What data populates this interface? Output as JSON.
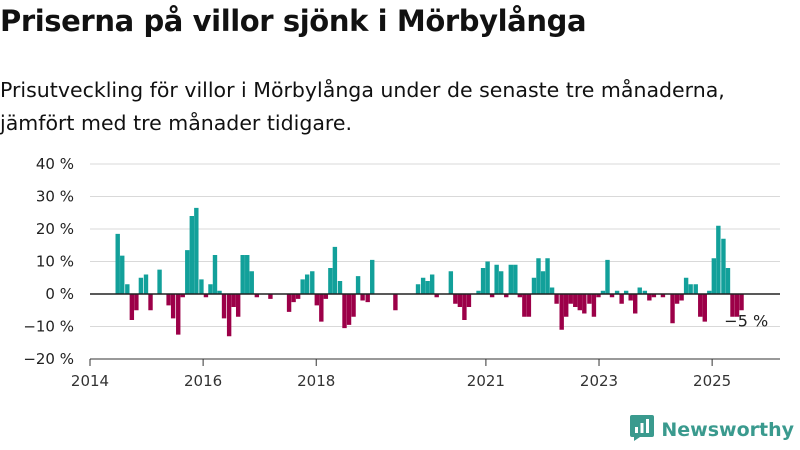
{
  "header": {
    "title": "Priserna på villor sjönk i Mörbylånga",
    "subtitle": "Prisutveckling för villor i Mörbylånga under de senaste tre månaderna, jämfört med tre månader tidigare."
  },
  "brand": {
    "name": "Newsworthy",
    "icon": "newsworthy-logo-icon",
    "color": "#3a9a8e"
  },
  "chart_data": {
    "type": "bar",
    "x_unit": "year (decimal)",
    "ylim": [
      -20,
      40
    ],
    "yticks": [
      -20,
      -10,
      0,
      10,
      20,
      30,
      40
    ],
    "ytick_labels": [
      "−20 %",
      "−10 %",
      "0 %",
      "10 %",
      "20 %",
      "30 %",
      "40 %"
    ],
    "xlim": [
      2014.0,
      2026.2
    ],
    "xticks": [
      2014,
      2016,
      2018,
      2021,
      2023,
      2025
    ],
    "xtick_labels": [
      "2014",
      "2016",
      "2018",
      "2021",
      "2023",
      "2025"
    ],
    "grid": true,
    "colors": {
      "positive": "#12a09a",
      "negative": "#9c0048"
    },
    "annotation": {
      "text": "−5 %",
      "x": 2025.55,
      "y": -5
    },
    "x": [
      2014.49,
      2014.57,
      2014.66,
      2014.74,
      2014.82,
      2014.9,
      2014.99,
      2015.07,
      2015.23,
      2015.39,
      2015.47,
      2015.56,
      2015.64,
      2015.72,
      2015.8,
      2015.88,
      2015.97,
      2016.05,
      2016.13,
      2016.21,
      2016.29,
      2016.37,
      2016.46,
      2016.54,
      2016.62,
      2016.7,
      2016.78,
      2016.86,
      2016.95,
      2017.19,
      2017.52,
      2017.6,
      2017.68,
      2017.76,
      2017.84,
      2017.93,
      2018.01,
      2018.09,
      2018.17,
      2018.25,
      2018.33,
      2018.42,
      2018.5,
      2018.58,
      2018.66,
      2018.74,
      2018.82,
      2018.91,
      2018.99,
      2019.4,
      2019.8,
      2019.89,
      2019.97,
      2020.05,
      2020.13,
      2020.38,
      2020.46,
      2020.54,
      2020.62,
      2020.7,
      2020.87,
      2020.95,
      2021.03,
      2021.11,
      2021.19,
      2021.27,
      2021.36,
      2021.44,
      2021.52,
      2021.6,
      2021.68,
      2021.76,
      2021.85,
      2021.93,
      2022.01,
      2022.09,
      2022.17,
      2022.25,
      2022.34,
      2022.42,
      2022.5,
      2022.58,
      2022.66,
      2022.74,
      2022.83,
      2022.91,
      2022.99,
      2023.07,
      2023.15,
      2023.23,
      2023.32,
      2023.4,
      2023.48,
      2023.56,
      2023.64,
      2023.72,
      2023.81,
      2023.89,
      2023.97,
      2024.13,
      2024.3,
      2024.38,
      2024.46,
      2024.54,
      2024.62,
      2024.71,
      2024.79,
      2024.87,
      2024.95,
      2025.03,
      2025.11,
      2025.2,
      2025.28,
      2025.36,
      2025.44,
      2025.52
    ],
    "values": [
      18.5,
      11.8,
      3,
      -8,
      -5,
      5,
      6,
      -5,
      7.5,
      -3.5,
      -7.5,
      -12.5,
      -1,
      13.5,
      24,
      26.5,
      4.5,
      -1,
      3,
      12,
      1,
      -7.5,
      -13,
      -4,
      -7,
      12,
      12,
      7,
      -1,
      -1.5,
      -5.5,
      -2.5,
      -1.5,
      4.5,
      6,
      7,
      -3.5,
      -8.5,
      -1.5,
      8,
      14.5,
      4,
      -10.5,
      -9.5,
      -7,
      5.5,
      -2,
      -2.5,
      10.5,
      -5,
      3,
      5,
      4,
      6,
      -1,
      7,
      -3,
      -4,
      -8,
      -4,
      1,
      8,
      10,
      -1,
      9,
      7,
      -1,
      9,
      9,
      -1,
      -7,
      -7,
      5,
      11,
      7,
      11,
      2,
      -3,
      -11,
      -7,
      -3,
      -4,
      -5,
      -6,
      -3,
      -7,
      -1,
      1,
      10.5,
      -1,
      1,
      -3,
      1,
      -2,
      -6,
      2,
      1,
      -2,
      -1,
      -1,
      -9,
      -3,
      -2,
      5,
      3,
      3,
      -7,
      -8.5,
      1,
      11,
      21,
      17,
      8,
      -7,
      -7,
      -5
    ]
  }
}
